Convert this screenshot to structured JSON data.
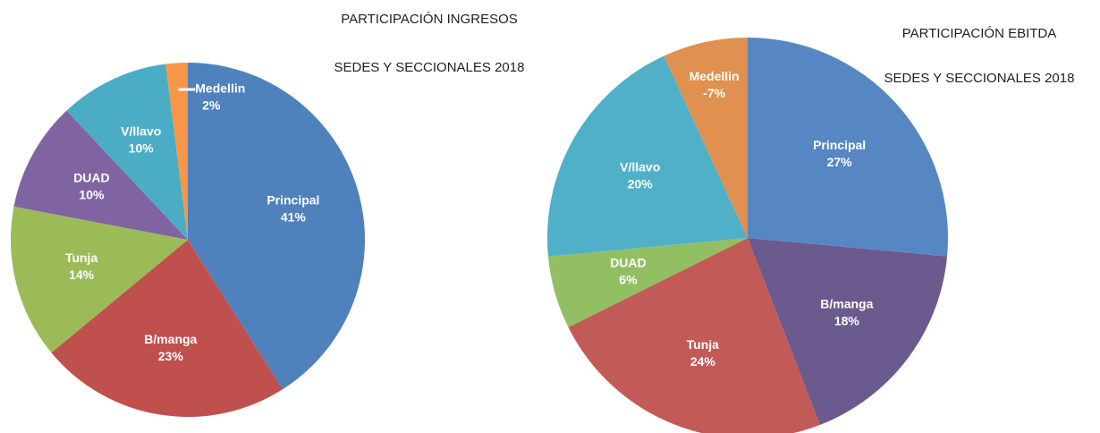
{
  "chart_data": [
    {
      "type": "pie",
      "title": "PARTICIPACIÓN INGRESOS",
      "subtitle": "SEDES Y SECCIONALES 2018",
      "categories": [
        "Principal",
        "B/manga",
        "Tunja",
        "DUAD",
        "V/llavo",
        "Medellin"
      ],
      "values": [
        41,
        23,
        14,
        10,
        10,
        2
      ],
      "value_labels": [
        "41%",
        "23%",
        "14%",
        "10%",
        "10%",
        "2%"
      ],
      "colors": [
        "#4f81bd",
        "#c0504d",
        "#9bbb59",
        "#8064a2",
        "#4bacc6",
        "#f79646"
      ]
    },
    {
      "type": "pie",
      "title": "PARTICIPACIÓN EBITDA",
      "subtitle": "SEDES Y SECCIONALES 2018",
      "categories": [
        "Principal",
        "B/manga",
        "Tunja",
        "DUAD",
        "V/llavo",
        "Medellin"
      ],
      "values": [
        27,
        18,
        24,
        6,
        20,
        -7
      ],
      "value_labels": [
        "27%",
        "18%",
        "24%",
        "6%",
        "20%",
        "-7%"
      ],
      "colors": [
        "#5787c2",
        "#6a5a8e",
        "#c25a57",
        "#93bf63",
        "#4fb0c8",
        "#e0904f"
      ]
    }
  ]
}
